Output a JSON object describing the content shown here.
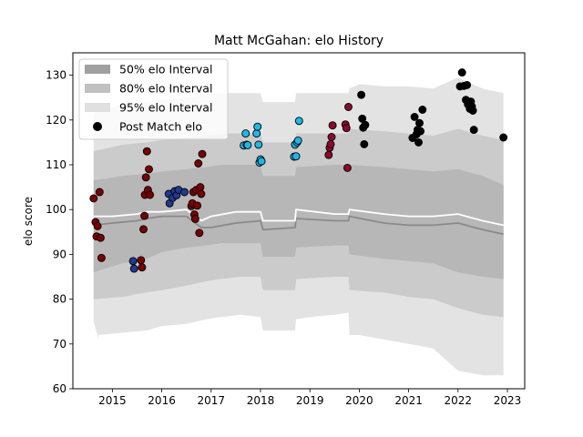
{
  "chart_data": {
    "type": "scatter",
    "title": "Matt McGahan: elo History",
    "xlabel": "",
    "ylabel": "elo score",
    "xlim": [
      2014.2,
      2023.35
    ],
    "ylim": [
      60,
      135
    ],
    "x_ticks": [
      2015,
      2016,
      2017,
      2018,
      2019,
      2020,
      2021,
      2022,
      2023
    ],
    "x_tick_labels": [
      "2015",
      "2016",
      "2017",
      "2018",
      "2019",
      "2020",
      "2021",
      "2022",
      "2023"
    ],
    "y_ticks": [
      60,
      70,
      80,
      90,
      100,
      110,
      120,
      130
    ],
    "y_tick_labels": [
      "60",
      "70",
      "80",
      "90",
      "100",
      "110",
      "120",
      "130"
    ],
    "grid": false,
    "legend_position": "top-left",
    "legend": [
      {
        "label": "50% elo Interval",
        "kind": "patch",
        "color": "#a0a0a0"
      },
      {
        "label": "80% elo Interval",
        "kind": "patch",
        "color": "#c0c0c0"
      },
      {
        "label": "95% elo Interval",
        "kind": "patch",
        "color": "#e0e0e0"
      },
      {
        "label": "Post Match elo",
        "kind": "marker",
        "color": "#000000"
      }
    ],
    "bands": [
      {
        "name": "95% elo Interval",
        "color": "#e3e3e3",
        "x": [
          2014.62,
          2014.72,
          2014.72,
          2015.2,
          2015.7,
          2016.0,
          2016.5,
          2016.9,
          2017.2,
          2017.6,
          2018.0,
          2018.05,
          2018.5,
          2018.7,
          2018.72,
          2019.0,
          2019.5,
          2019.78,
          2019.8,
          2020.0,
          2020.5,
          2021.0,
          2021.5,
          2022.0,
          2022.5,
          2022.92
        ],
        "upper": [
          121,
          123,
          122,
          123.5,
          124,
          124.5,
          125,
          125.5,
          126,
          126,
          126,
          124,
          124,
          124,
          126,
          126,
          126,
          126,
          127,
          128,
          127.5,
          127.5,
          127,
          129.5,
          127,
          126
        ],
        "lower": [
          75,
          71,
          72,
          72.5,
          73,
          74,
          74.5,
          75.5,
          76,
          76.5,
          76,
          73,
          73,
          73,
          75.5,
          76,
          76.5,
          77,
          72,
          72,
          71,
          70,
          69,
          64,
          63,
          63
        ]
      },
      {
        "name": "80% elo Interval",
        "color": "#cbcbcb",
        "x": [
          2014.62,
          2015.2,
          2015.7,
          2016.0,
          2016.5,
          2016.9,
          2017.2,
          2017.6,
          2018.0,
          2018.05,
          2018.7,
          2018.72,
          2019.5,
          2019.78,
          2019.8,
          2020.5,
          2021.0,
          2021.5,
          2022.0,
          2022.5,
          2022.92
        ],
        "upper": [
          113,
          114.5,
          115,
          115.5,
          116,
          116.5,
          117,
          117,
          117,
          115,
          115,
          117,
          117,
          117,
          118,
          117.5,
          117,
          116.5,
          118,
          116.5,
          115.5
        ],
        "lower": [
          80,
          80.5,
          81.5,
          82,
          83,
          84,
          84.5,
          85,
          85,
          82,
          82,
          84.5,
          85,
          85,
          82,
          81.5,
          80.5,
          80,
          78,
          76.5,
          76
        ]
      },
      {
        "name": "50% elo Interval",
        "color": "#b7b7b7",
        "x": [
          2014.62,
          2015.2,
          2015.7,
          2016.0,
          2016.5,
          2016.9,
          2017.2,
          2017.6,
          2018.0,
          2018.05,
          2018.7,
          2018.72,
          2019.5,
          2019.78,
          2019.8,
          2020.5,
          2021.0,
          2021.5,
          2022.0,
          2022.5,
          2022.92
        ],
        "upper": [
          106.5,
          107.5,
          108,
          108.5,
          109,
          109.5,
          110,
          110,
          110,
          107.5,
          107.5,
          109.5,
          110,
          110,
          110,
          109.5,
          109,
          108.5,
          109,
          107.5,
          105.5
        ],
        "lower": [
          86,
          88,
          89,
          90.5,
          91.5,
          92,
          92.5,
          92.5,
          92.5,
          89.5,
          89.5,
          91.5,
          92,
          92,
          90,
          89,
          88.5,
          88,
          86,
          85,
          84.5
        ]
      }
    ],
    "lines": [
      {
        "name": "elo",
        "color": "#8a8a8a",
        "x": [
          2014.62,
          2015.0,
          2015.5,
          2015.7,
          2016.0,
          2016.5,
          2016.8,
          2017.0,
          2017.5,
          2018.0,
          2018.05,
          2018.7,
          2018.72,
          2019.5,
          2019.78,
          2019.8,
          2020.5,
          2021.0,
          2021.5,
          2022.0,
          2022.5,
          2022.92
        ],
        "y": [
          96.5,
          97,
          97.5,
          98,
          98.5,
          98.5,
          96,
          96,
          97,
          97.5,
          95.5,
          96,
          98,
          97.5,
          97.5,
          98.5,
          97,
          96.5,
          96.5,
          97,
          95.5,
          94.5
        ]
      },
      {
        "name": "elo",
        "color": "#ffffff",
        "x": [
          2014.62,
          2015.0,
          2015.5,
          2015.7,
          2016.0,
          2016.5,
          2016.8,
          2017.0,
          2017.5,
          2018.0,
          2018.05,
          2018.7,
          2018.72,
          2019.5,
          2019.78,
          2019.8,
          2020.5,
          2021.0,
          2021.5,
          2022.0,
          2022.5,
          2022.92
        ],
        "y": [
          98.5,
          98.5,
          99,
          99.5,
          99.5,
          100,
          97.5,
          98.5,
          99.5,
          99.5,
          97.5,
          97.5,
          100,
          99,
          99,
          100,
          99,
          98.5,
          98.5,
          99,
          97.5,
          96.5
        ]
      }
    ],
    "series": [
      {
        "name": "Post Match elo",
        "color": "#7a0000",
        "x": [
          2014.62,
          2014.66,
          2014.68,
          2014.7,
          2014.74,
          2014.76,
          2014.78,
          2015.58,
          2015.6,
          2015.63,
          2015.65,
          2015.66,
          2015.68,
          2015.7,
          2015.72,
          2015.74,
          2015.76,
          2016.6,
          2016.62,
          2016.64,
          2016.66,
          2016.68,
          2016.7,
          2016.72,
          2016.74,
          2016.76,
          2016.78,
          2016.8,
          2016.82
        ],
        "y": [
          102.5,
          97.2,
          94.0,
          96.3,
          103.9,
          93.7,
          89.2,
          88.7,
          87.1,
          95.6,
          98.6,
          103.3,
          107.2,
          113.0,
          104.4,
          109.0,
          103.3,
          100.8,
          101.4,
          103.9,
          98.9,
          97.9,
          104.4,
          100.9,
          110.3,
          94.8,
          105.0,
          103.5,
          112.4
        ]
      },
      {
        "name": "Post Match elo",
        "color": "#1f3a93",
        "x": [
          2015.42,
          2015.44,
          2016.14,
          2016.16,
          2016.22,
          2016.26,
          2016.3,
          2016.34,
          2016.46
        ],
        "y": [
          88.5,
          86.8,
          103.5,
          101.4,
          102.6,
          104.1,
          103.2,
          104.4,
          103.9
        ]
      },
      {
        "name": "Post Match elo",
        "color": "#1fb7e8",
        "x": [
          2017.66,
          2017.7,
          2017.72,
          2017.74,
          2017.92,
          2017.94,
          2017.96,
          2017.98,
          2018.0,
          2018.02,
          2018.68,
          2018.7,
          2018.72,
          2018.74,
          2018.76,
          2018.78
        ],
        "y": [
          114.3,
          117.0,
          114.5,
          114.4,
          117.0,
          118.5,
          114.5,
          110.5,
          111.2,
          110.8,
          111.8,
          114.5,
          111.9,
          115.0,
          115.4,
          119.8
        ]
      },
      {
        "name": "Post Match elo",
        "color": "#8b0a2e",
        "x": [
          2019.38,
          2019.4,
          2019.42,
          2019.44,
          2019.46,
          2019.72,
          2019.74,
          2019.76,
          2019.78
        ],
        "y": [
          112.2,
          113.8,
          114.6,
          116.2,
          118.8,
          119.0,
          118.2,
          109.3,
          122.9
        ]
      },
      {
        "name": "Post Match elo",
        "color": "#000000",
        "x": [
          2020.04,
          2020.06,
          2020.08,
          2020.1,
          2020.12,
          2021.08,
          2021.12,
          2021.16,
          2021.18,
          2021.2,
          2021.22,
          2021.24,
          2021.28,
          2022.04,
          2022.08,
          2022.12,
          2022.16,
          2022.18,
          2022.2,
          2022.22,
          2022.24,
          2022.26,
          2022.28,
          2022.3,
          2022.32,
          2022.92
        ],
        "y": [
          125.6,
          120.3,
          118.3,
          114.6,
          118.9,
          116.0,
          120.7,
          116.8,
          117.8,
          115.0,
          119.3,
          117.5,
          122.3,
          127.5,
          130.6,
          127.6,
          124.5,
          127.8,
          123.5,
          124.0,
          122.5,
          124.1,
          123.0,
          122.1,
          117.8,
          116.1
        ]
      }
    ]
  }
}
